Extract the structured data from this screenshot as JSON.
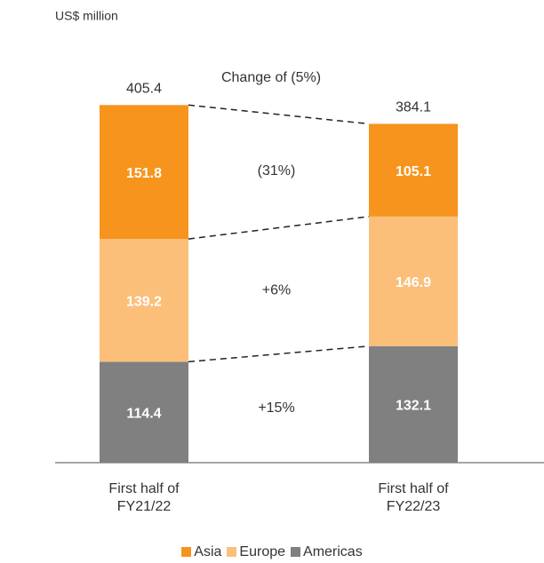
{
  "chart_data": {
    "type": "stacked_bar",
    "title": "US$ million",
    "annotation": "Change of (5%)",
    "categories": [
      "First half of FY21/22",
      "First half of FY22/23"
    ],
    "series": [
      {
        "name": "Americas",
        "color": "#808080",
        "values": [
          114.4,
          132.1
        ]
      },
      {
        "name": "Europe",
        "color": "#fbbf7a",
        "values": [
          139.2,
          146.9
        ]
      },
      {
        "name": "Asia",
        "color": "#f7941d",
        "values": [
          151.8,
          105.1
        ]
      }
    ],
    "totals": [
      405.4,
      384.1
    ],
    "changes": [
      "+15%",
      "+6%",
      "(31%)"
    ],
    "ylim": [
      0,
      450
    ],
    "legend": "bottom"
  }
}
